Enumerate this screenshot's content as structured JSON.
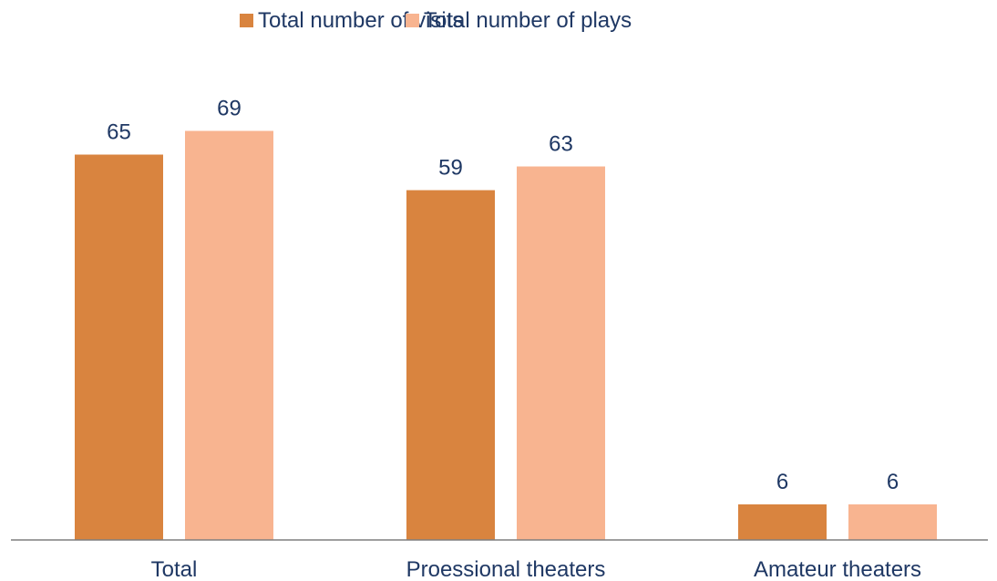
{
  "chart_data": {
    "type": "bar",
    "categories": [
      "Total",
      "Proessional theaters",
      "Amateur theaters"
    ],
    "series": [
      {
        "name": "Total number of visits",
        "values": [
          65,
          59,
          6
        ],
        "color": "#D9843F"
      },
      {
        "name": "Total number of plays",
        "values": [
          69,
          63,
          6
        ],
        "color": "#F8B490"
      }
    ],
    "ylim": [
      0,
      100
    ],
    "grid": false,
    "legend_position": "top-center",
    "axis_color": "#7f7f7f"
  }
}
